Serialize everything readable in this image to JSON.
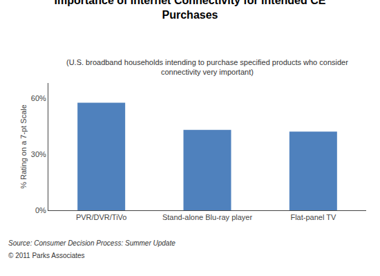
{
  "chart_data": {
    "type": "bar",
    "title": "Importance of Internet Connectivity for Intended CE\nPurchases",
    "subtitle": "(U.S. broadband households intending to purchase specified products who consider\nconnectivity very important)",
    "categories": [
      "PVR/DVR/TiVo",
      "Stand-alone Blu-ray player",
      "Flat-panel TV"
    ],
    "values": [
      57.5,
      43.0,
      42.0
    ],
    "color": "#4F81BD",
    "ylabel": "% Rating on a 7-pt Scale",
    "ylim": [
      0,
      68
    ],
    "yticks": [
      {
        "value": 0,
        "label": "0%"
      },
      {
        "value": 30,
        "label": "30%"
      },
      {
        "value": 60,
        "label": "60%"
      }
    ],
    "grid": false,
    "annotations": [
      "Source: Consumer Decision Process: Summer Update",
      "© 2011 Parks Associates"
    ]
  }
}
